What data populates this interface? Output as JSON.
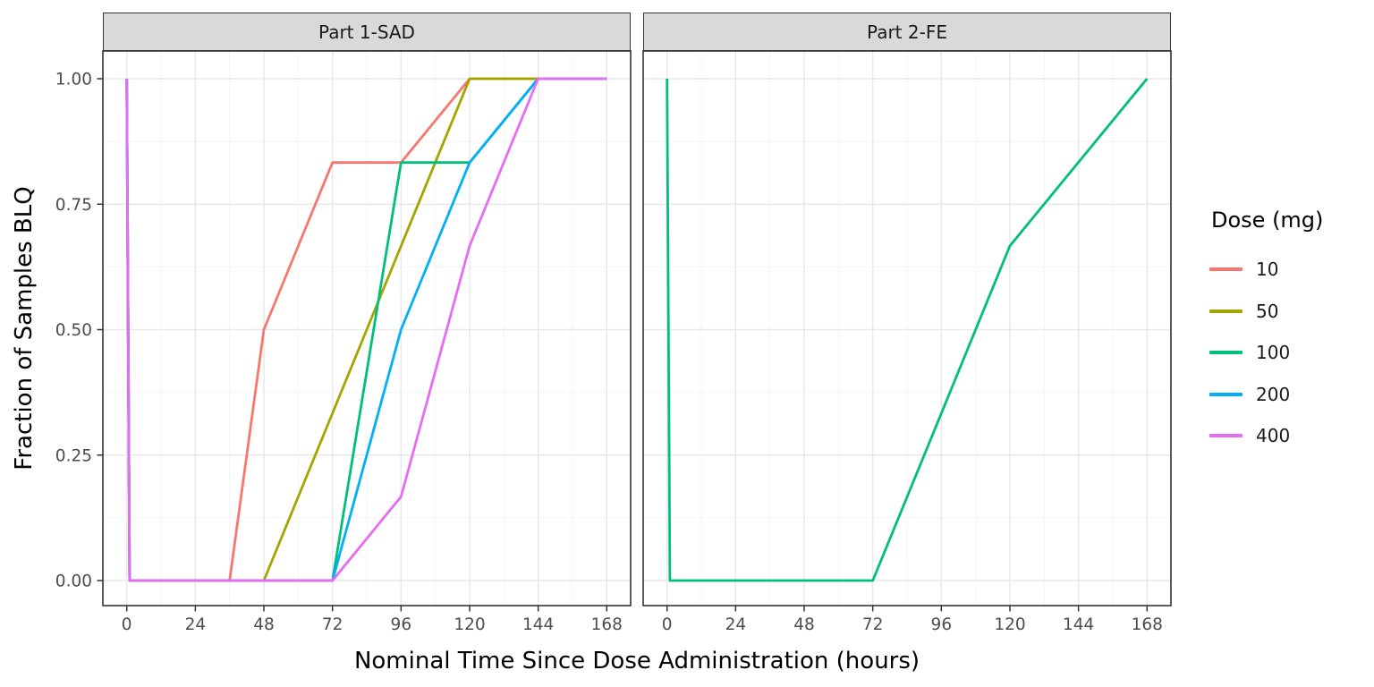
{
  "chart_data": {
    "type": "line",
    "title": "",
    "xlabel": "Nominal Time Since Dose Administration (hours)",
    "ylabel": "Fraction of Samples BLQ",
    "x_ticks": [
      0,
      24,
      48,
      72,
      96,
      120,
      144,
      168
    ],
    "y_ticks": [
      1.0,
      0.75,
      0.5,
      0.25,
      0.0
    ],
    "y_tick_labels": [
      "1.00",
      "0.75",
      "0.50",
      "0.25",
      "0.00"
    ],
    "xlim": [
      -8.4,
      176.4
    ],
    "ylim": [
      -0.05,
      1.05
    ],
    "grid": "major and minor gridlines on",
    "legend": {
      "title": "Dose (mg)",
      "position": "right",
      "entries": [
        {
          "label": "10",
          "color": "#F8766D"
        },
        {
          "label": "50",
          "color": "#A3A500"
        },
        {
          "label": "100",
          "color": "#00BF7D"
        },
        {
          "label": "200",
          "color": "#00B0F6"
        },
        {
          "label": "400",
          "color": "#E76BF3"
        }
      ]
    },
    "facets": [
      {
        "label": "Part 1-SAD",
        "series": [
          {
            "name": "10",
            "color": "#F8766D",
            "points": [
              [
                0,
                1
              ],
              [
                1,
                0
              ],
              [
                36,
                0
              ],
              [
                48,
                0.5
              ],
              [
                72,
                0.833
              ],
              [
                96,
                0.833
              ],
              [
                120,
                1
              ],
              [
                168,
                1
              ]
            ]
          },
          {
            "name": "50",
            "color": "#A3A500",
            "points": [
              [
                0,
                1
              ],
              [
                1,
                0
              ],
              [
                48,
                0
              ],
              [
                120,
                1
              ],
              [
                168,
                1
              ]
            ]
          },
          {
            "name": "100",
            "color": "#00BF7D",
            "points": [
              [
                0,
                1
              ],
              [
                1,
                0
              ],
              [
                72,
                0
              ],
              [
                96,
                0.833
              ],
              [
                120,
                0.833
              ],
              [
                144,
                1
              ],
              [
                168,
                1
              ]
            ]
          },
          {
            "name": "200",
            "color": "#00B0F6",
            "points": [
              [
                0,
                1
              ],
              [
                1,
                0
              ],
              [
                72,
                0
              ],
              [
                96,
                0.5
              ],
              [
                120,
                0.833
              ],
              [
                144,
                1
              ],
              [
                168,
                1
              ]
            ]
          },
          {
            "name": "400",
            "color": "#E76BF3",
            "points": [
              [
                0,
                1
              ],
              [
                1,
                0
              ],
              [
                72,
                0
              ],
              [
                96,
                0.167
              ],
              [
                120,
                0.667
              ],
              [
                144,
                1
              ],
              [
                168,
                1
              ]
            ]
          }
        ]
      },
      {
        "label": "Part 2-FE",
        "series": [
          {
            "name": "100",
            "color": "#00BF7D",
            "points": [
              [
                0,
                1
              ],
              [
                1,
                0
              ],
              [
                72,
                0
              ],
              [
                96,
                0.333
              ],
              [
                120,
                0.667
              ],
              [
                168,
                1
              ]
            ]
          }
        ]
      }
    ],
    "styles": {
      "panel_bg": "#FFFFFF",
      "grid_major": "#E8E8E8",
      "grid_minor": "#F4F4F4",
      "strip_bg": "#D9D9D9",
      "strip_text": "#1A1A1A",
      "border": "#333333",
      "tick_label_color": "#4D4D4D",
      "title_color": "#000000"
    }
  }
}
